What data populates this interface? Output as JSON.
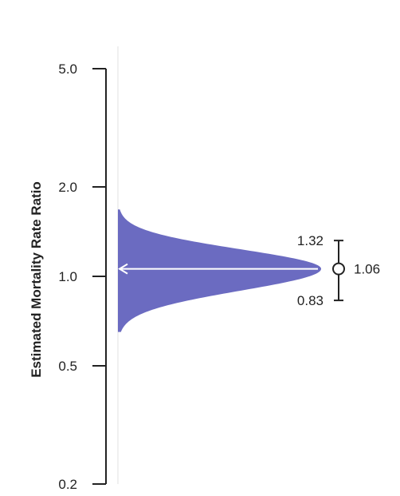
{
  "chart_data": {
    "type": "density",
    "ylabel": "Estimated Mortality Rate Ratio",
    "y_scale": "log",
    "ylim": [
      0.2,
      5.0
    ],
    "y_ticks": [
      {
        "value": 0.2,
        "label": "0.2"
      },
      {
        "value": 0.5,
        "label": "0.5"
      },
      {
        "value": 1.0,
        "label": "1.0"
      },
      {
        "value": 2.0,
        "label": "2.0"
      },
      {
        "value": 5.0,
        "label": "5.0"
      }
    ],
    "reference_line": 1.0,
    "distribution": {
      "color": "#6b6bc1",
      "center": 1.06,
      "lower": 0.83,
      "upper": 1.32,
      "min": 0.65,
      "max": 1.68
    },
    "estimate": {
      "point": 1.06,
      "lower": 0.83,
      "upper": 1.32,
      "point_label": "1.06",
      "lower_label": "0.83",
      "upper_label": "1.32"
    },
    "grid": false,
    "legend": "none"
  }
}
